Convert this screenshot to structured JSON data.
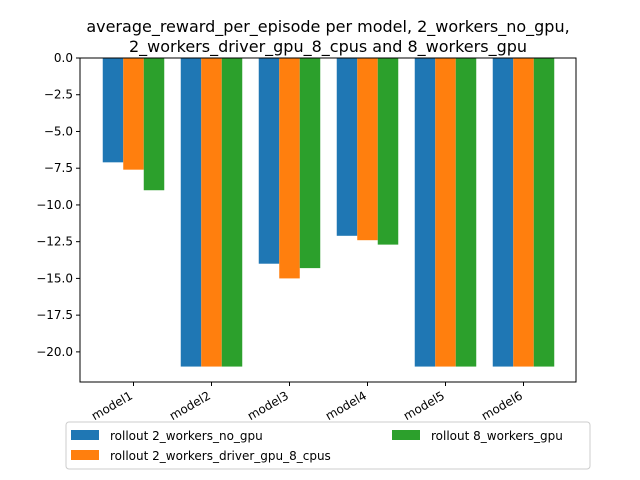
{
  "chart_data": {
    "type": "bar",
    "title_lines": [
      "average_reward_per_episode per model, 2_workers_no_gpu,",
      "2_workers_driver_gpu_8_cpus and 8_workers_gpu"
    ],
    "xlabel": "",
    "ylabel": "",
    "categories": [
      "model1",
      "model2",
      "model3",
      "model4",
      "model5",
      "model6"
    ],
    "series": [
      {
        "name": "rollout 2_workers_no_gpu",
        "color": "#1f77b4",
        "values": [
          -7.1,
          -21.0,
          -14.0,
          -12.1,
          -21.0,
          -21.0
        ]
      },
      {
        "name": "rollout 2_workers_driver_gpu_8_cpus",
        "color": "#ff7f0e",
        "values": [
          -7.6,
          -21.0,
          -15.0,
          -12.4,
          -21.0,
          -21.0
        ]
      },
      {
        "name": "rollout 8_workers_gpu",
        "color": "#2ca02c",
        "values": [
          -9.0,
          -21.0,
          -14.3,
          -12.7,
          -21.0,
          -21.0
        ]
      }
    ],
    "ylim": [
      -22.05,
      0.0
    ],
    "yticks": [
      "0.0",
      "−2.5",
      "−5.0",
      "−7.5",
      "−10.0",
      "−12.5",
      "−15.0",
      "−17.5",
      "−20.0"
    ],
    "ytick_values": [
      0.0,
      -2.5,
      -5.0,
      -7.5,
      -10.0,
      -12.5,
      -15.0,
      -17.5,
      -20.0
    ],
    "grid": false,
    "legend_position": "below"
  }
}
